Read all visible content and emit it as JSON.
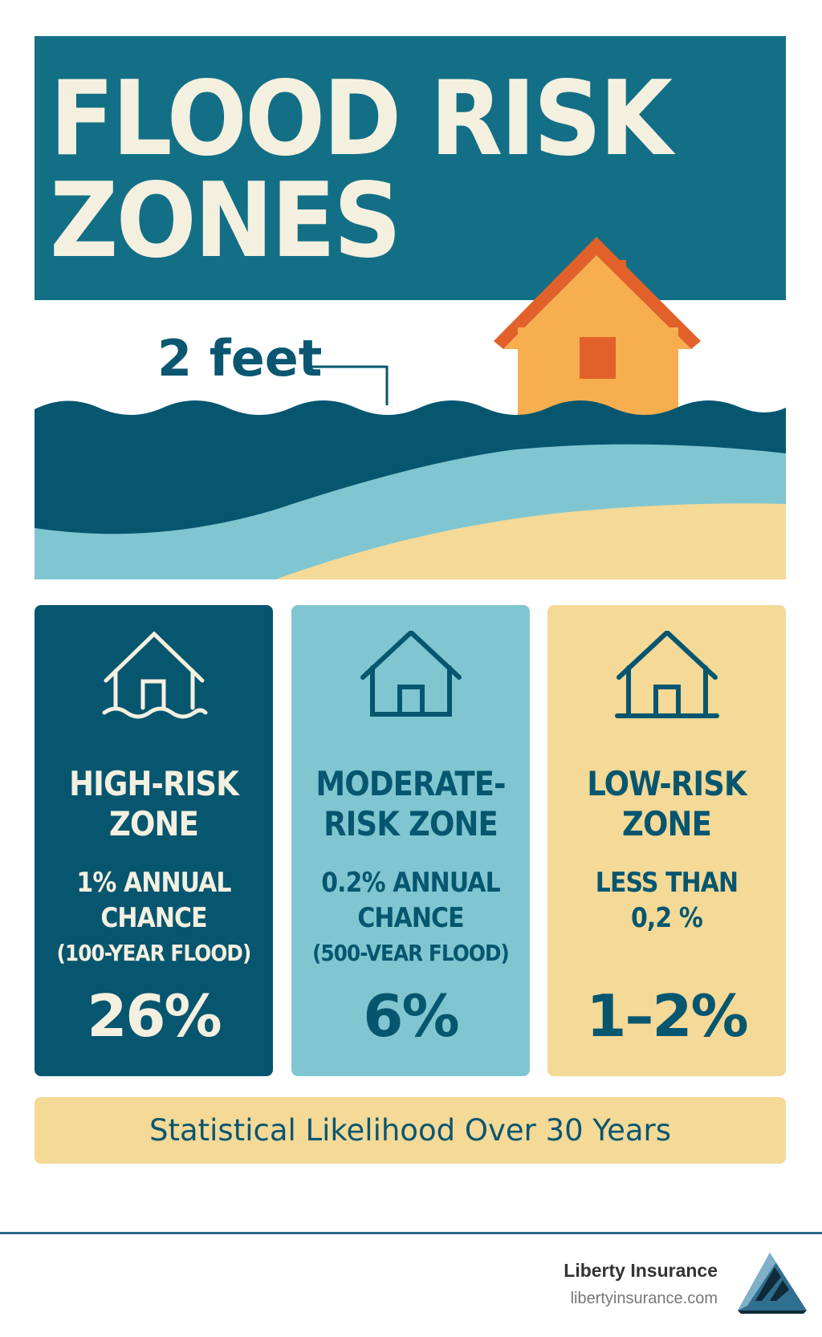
{
  "header": {
    "title_line1": "FLOOD RISK",
    "title_line2": "ZONES"
  },
  "scene": {
    "depth_label": "2 feet"
  },
  "colors": {
    "dark_teal": "#07566f",
    "light_teal": "#80c6d1",
    "sand": "#f4d997",
    "house": "#f7ae4e",
    "roof": "#e2612a",
    "cream": "#f4f0e0"
  },
  "zones": [
    {
      "icon": "flooded-house-icon",
      "name_line1": "HIGH-RISK",
      "name_line2": "ZONE",
      "chance_line1": "1% ANNUAL",
      "chance_line2": "CHANCE",
      "chance_line3": "(100-YEAR FLOOD)",
      "likelihood": "26%"
    },
    {
      "icon": "house-icon",
      "name_line1": "MODERATE-",
      "name_line2": "RISK ZONE",
      "chance_line1": "0.2% ANNUAL",
      "chance_line2": "CHANCE",
      "chance_line3": "(500-VEAR FLOOD)",
      "likelihood": "6%"
    },
    {
      "icon": "house-icon",
      "name_line1": "LOW-RISK",
      "name_line2": "ZONE",
      "chance_line1": "LESS THAN",
      "chance_line2": "0,2 %",
      "chance_line3": "",
      "likelihood": "1–2%"
    }
  ],
  "footer_bar": {
    "text": "Statistical Likelihood Over 30 Years"
  },
  "brand": {
    "name": "Liberty Insurance",
    "url": "libertyinsurance.com"
  }
}
